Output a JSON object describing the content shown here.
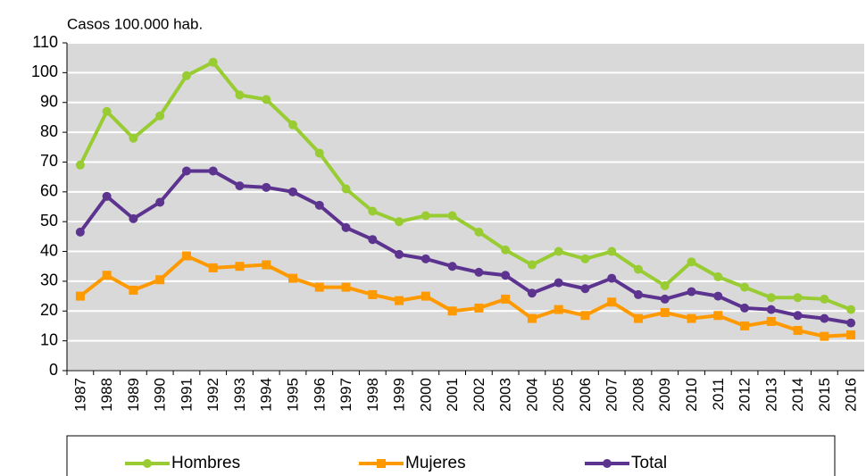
{
  "chart_data": {
    "type": "line",
    "y_label": "Casos 100.000 hab.",
    "categories": [
      "1987",
      "1988",
      "1989",
      "1990",
      "1991",
      "1992",
      "1993",
      "1994",
      "1995",
      "1996",
      "1997",
      "1998",
      "1999",
      "2000",
      "2001",
      "2002",
      "2003",
      "2004",
      "2005",
      "2006",
      "2007",
      "2008",
      "2009",
      "2010",
      "2011",
      "2012",
      "2013",
      "2014",
      "2015",
      "2016"
    ],
    "series": [
      {
        "name": "Hombres",
        "color": "#99cc33",
        "marker": "circle",
        "values": [
          69,
          87,
          78,
          85.5,
          99,
          103.5,
          92.5,
          91,
          82.5,
          73,
          61,
          53.5,
          50,
          52,
          52,
          46.5,
          40.5,
          35.5,
          40,
          37.5,
          40,
          34,
          28.5,
          36.5,
          31.5,
          28,
          24.5,
          24.5,
          24,
          20.5
        ]
      },
      {
        "name": "Mujeres",
        "color": "#ff9900",
        "marker": "square",
        "values": [
          25,
          32,
          27,
          30.5,
          38.5,
          34.5,
          35,
          35.5,
          31,
          28,
          28,
          25.5,
          23.5,
          25,
          20,
          21,
          24,
          17.5,
          20.5,
          18.5,
          23,
          17.5,
          19.5,
          17.5,
          18.5,
          15,
          16.5,
          13.5,
          11.5,
          12
        ]
      },
      {
        "name": "Total",
        "color": "#5c3490",
        "marker": "circle",
        "values": [
          46.5,
          58.5,
          51,
          56.5,
          67,
          67,
          62,
          61.5,
          60,
          55.5,
          48,
          44,
          39,
          37.5,
          35,
          33,
          32,
          26,
          29.5,
          27.5,
          31,
          25.5,
          24,
          26.5,
          25,
          21,
          20.5,
          18.5,
          17.5,
          16
        ]
      }
    ],
    "ylim": [
      0,
      110
    ],
    "yticks": [
      0,
      10,
      20,
      30,
      40,
      50,
      60,
      70,
      80,
      90,
      100,
      110
    ],
    "grid": true,
    "plot_background": "#d9d9d9",
    "legend": "bottom"
  }
}
